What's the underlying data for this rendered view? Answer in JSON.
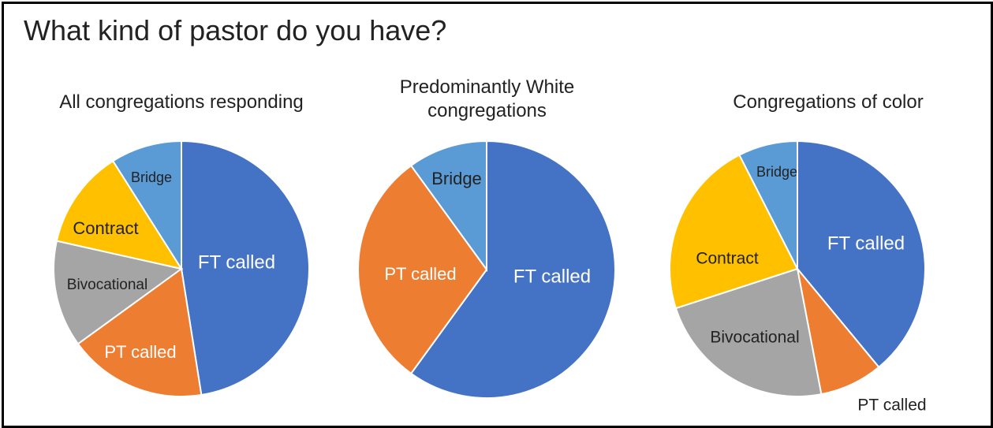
{
  "title": "What kind of pastor do you have?",
  "colors": {
    "FT called": "#4472C4",
    "PT called": "#ED7D31",
    "Bivocational": "#A5A5A5",
    "Contract": "#FFC000",
    "Bridge": "#5B9BD5"
  },
  "chart_data": [
    {
      "type": "pie",
      "title": "All congregations responding",
      "categories": [
        "FT called",
        "PT called",
        "Bivocational",
        "Contract",
        "Bridge"
      ],
      "values": [
        47.5,
        17.5,
        13.5,
        12.5,
        9.0
      ]
    },
    {
      "type": "pie",
      "title": "Predominantly White congregations",
      "categories": [
        "FT called",
        "PT called",
        "Bridge"
      ],
      "values": [
        60.0,
        30.0,
        10.0
      ]
    },
    {
      "type": "pie",
      "title": "Congregations of color",
      "categories": [
        "FT called",
        "PT called",
        "Bivocational",
        "Contract",
        "Bridge"
      ],
      "values": [
        39.0,
        8.0,
        23.0,
        22.5,
        7.5
      ]
    }
  ]
}
